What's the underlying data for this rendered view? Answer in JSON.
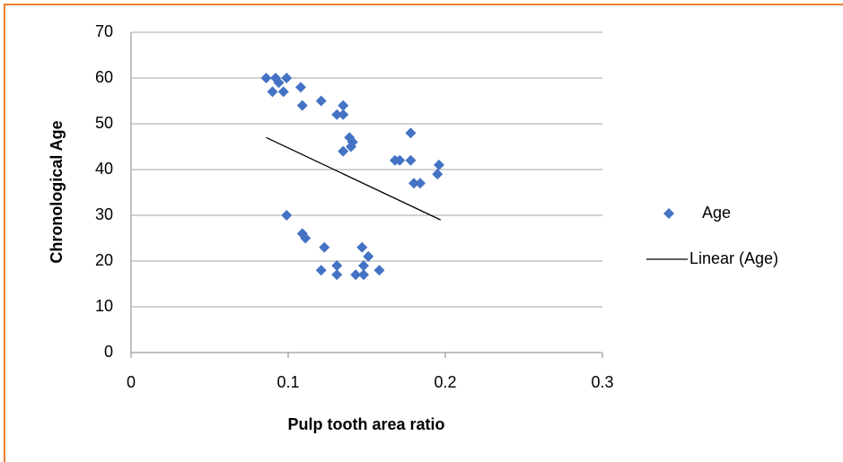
{
  "chart_data": {
    "type": "scatter",
    "xlabel": "Pulp tooth area ratio",
    "ylabel": "Chronological Age",
    "xlim": [
      0,
      0.3
    ],
    "xticks": [
      0,
      0.1,
      0.2,
      0.3
    ],
    "ylim": [
      0,
      70
    ],
    "yticks": [
      0,
      10,
      20,
      30,
      40,
      50,
      60,
      70
    ],
    "grid": true,
    "legend": "right",
    "series": [
      {
        "name": "Age",
        "color": "#4472c4",
        "x": [
          0.086,
          0.092,
          0.099,
          0.09,
          0.097,
          0.094,
          0.108,
          0.109,
          0.121,
          0.135,
          0.131,
          0.135,
          0.139,
          0.141,
          0.14,
          0.135,
          0.168,
          0.171,
          0.178,
          0.178,
          0.18,
          0.184,
          0.195,
          0.196,
          0.099,
          0.109,
          0.111,
          0.123,
          0.121,
          0.131,
          0.131,
          0.143,
          0.148,
          0.148,
          0.147,
          0.151,
          0.158
        ],
        "values": [
          60,
          60,
          60,
          57,
          57,
          59,
          58,
          54,
          55,
          54,
          52,
          52,
          47,
          46,
          45,
          44,
          42,
          42,
          42,
          48,
          37,
          37,
          39,
          41,
          30,
          26,
          25,
          23,
          18,
          19,
          17,
          17,
          17,
          19,
          23,
          21,
          18
        ]
      },
      {
        "name": "Linear (Age)",
        "color": "#000000",
        "trendline": true,
        "x": [
          0.086,
          0.197
        ],
        "values": [
          47,
          29
        ]
      }
    ]
  }
}
